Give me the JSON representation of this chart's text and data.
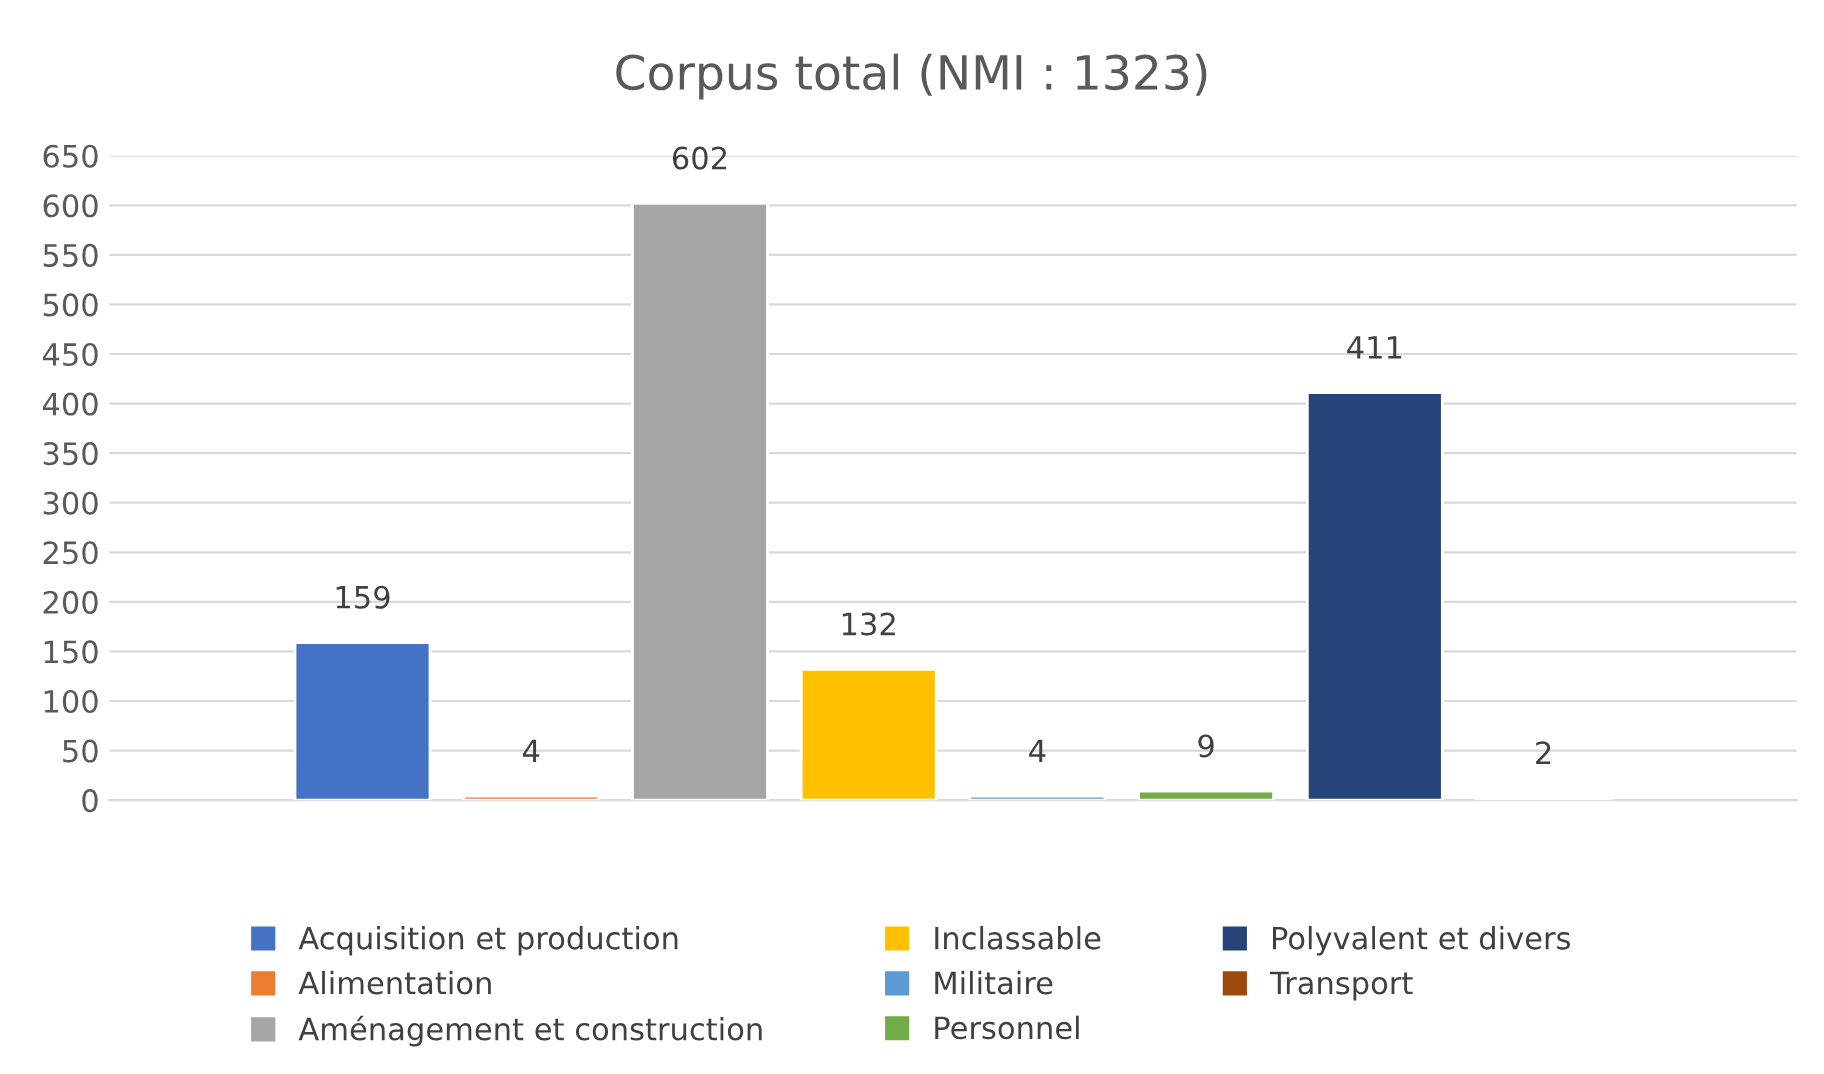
{
  "chart_data": {
    "type": "bar",
    "title": "Corpus total (NMI : 1323)",
    "categories": [
      null
    ],
    "series": [
      {
        "name": "Acquisition et production",
        "color": "#4472c4",
        "values": [
          159
        ]
      },
      {
        "name": "Alimentation",
        "color": "#ed7d31",
        "values": [
          4
        ]
      },
      {
        "name": "Aménagement et construction",
        "color": "#a5a5a5",
        "values": [
          602
        ]
      },
      {
        "name": "Inclassable",
        "color": "#ffc000",
        "values": [
          132
        ]
      },
      {
        "name": "Militaire",
        "color": "#5b9bd5",
        "values": [
          4
        ]
      },
      {
        "name": "Personnel",
        "color": "#70ad47",
        "values": [
          9
        ]
      },
      {
        "name": "Polyvalent et divers",
        "color": "#264478",
        "values": [
          411
        ]
      },
      {
        "name": "Transport",
        "color": "#9e480e",
        "values": [
          2
        ]
      }
    ],
    "ylim": [
      0,
      650
    ],
    "yticks": [
      0,
      50,
      100,
      150,
      200,
      250,
      300,
      350,
      400,
      450,
      500,
      550,
      600,
      650
    ],
    "grid": "y",
    "legend": "bottom",
    "data_labels": true
  }
}
